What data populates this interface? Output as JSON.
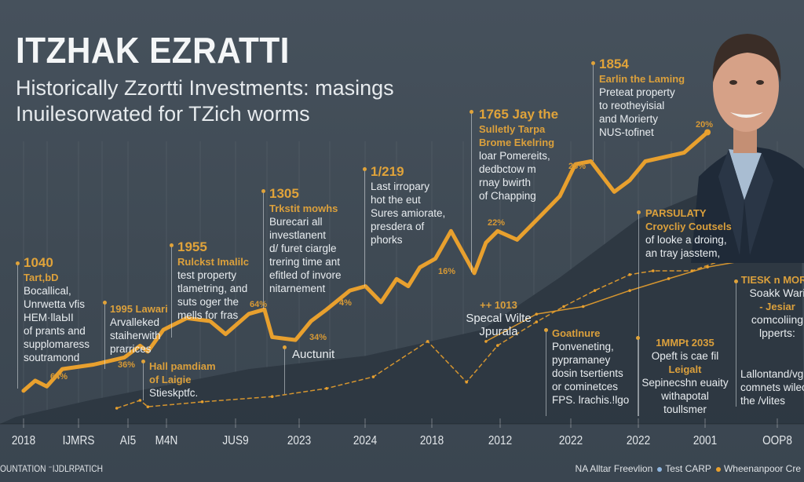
{
  "header": {
    "title": "ITZHAK EZRATTI",
    "subtitle_1": "Historically Zzortti Investments: masings",
    "subtitle_2": "Inuilesorwated for TZich worms"
  },
  "colors": {
    "accent": "#e8a02e",
    "background": "#3f4a55",
    "area": "#2c3640",
    "legend_blue": "#8fb6e0"
  },
  "chart_data": {
    "type": "line",
    "title": "ITZHAK EZRATTI",
    "x_tick_labels": [
      "2018",
      "IJMRS",
      "AI5",
      "M4N",
      "JUS9",
      "2023",
      "2024",
      "2018",
      "2012",
      "2022",
      "2022",
      "2001",
      "OOP8"
    ],
    "y_axis": "unlabeled",
    "xlim": [
      0,
      100
    ],
    "ylim": [
      0,
      100
    ],
    "grid": "vertical",
    "legend_placement": "bottom-right",
    "series": [
      {
        "style": "thick-orange",
        "points": [
          [
            1,
            6
          ],
          [
            2.5,
            9.5
          ],
          [
            4,
            7.5
          ],
          [
            6,
            13.5
          ],
          [
            10,
            15
          ],
          [
            14,
            17.5
          ],
          [
            16,
            21.5
          ],
          [
            17,
            19.5
          ],
          [
            19,
            27
          ],
          [
            22,
            31
          ],
          [
            25,
            30
          ],
          [
            27,
            25.5
          ],
          [
            30,
            32.5
          ],
          [
            32,
            34
          ],
          [
            33,
            24.5
          ],
          [
            36,
            23.5
          ],
          [
            38,
            30
          ],
          [
            40,
            34
          ],
          [
            43,
            40.5
          ],
          [
            45,
            42
          ],
          [
            47,
            36.5
          ],
          [
            49,
            44.5
          ],
          [
            50.5,
            42
          ],
          [
            52,
            48.5
          ],
          [
            54,
            51.5
          ],
          [
            56,
            61
          ],
          [
            59,
            46.5
          ],
          [
            60.5,
            57
          ],
          [
            62,
            61
          ],
          [
            64.5,
            58
          ],
          [
            68,
            67.5
          ],
          [
            70,
            73
          ],
          [
            72,
            84
          ],
          [
            74,
            85
          ],
          [
            77,
            74.5
          ],
          [
            79,
            78.5
          ],
          [
            81,
            85
          ],
          [
            86,
            88
          ],
          [
            89,
            95
          ]
        ]
      },
      {
        "style": "thin-orange-dashed",
        "points": [
          [
            13,
            0
          ],
          [
            16,
            2.7
          ],
          [
            17,
            0.5
          ],
          [
            24,
            2.2
          ],
          [
            33,
            4
          ],
          [
            40,
            6.8
          ],
          [
            46,
            10.8
          ],
          [
            53,
            23
          ],
          [
            58,
            9
          ],
          [
            62,
            21.6
          ],
          [
            67,
            29.7
          ],
          [
            70.5,
            35
          ],
          [
            74.5,
            40.5
          ],
          [
            79,
            46
          ],
          [
            82,
            47.3
          ],
          [
            87,
            47.3
          ],
          [
            91,
            51
          ],
          [
            101,
            55
          ]
        ]
      },
      {
        "style": "thin-orange",
        "points": [
          [
            60.5,
            23
          ],
          [
            67,
            32.4
          ],
          [
            73,
            35
          ],
          [
            79,
            40.5
          ],
          [
            84,
            44.6
          ],
          [
            89,
            48.6
          ],
          [
            95,
            51.4
          ],
          [
            101,
            54
          ]
        ]
      },
      {
        "style": "dark-area",
        "points": [
          [
            0,
            -3
          ],
          [
            10,
            3
          ],
          [
            30,
            13.5
          ],
          [
            45,
            18
          ],
          [
            60,
            27
          ],
          [
            70,
            45
          ],
          [
            80,
            65
          ],
          [
            90,
            76
          ],
          [
            101,
            81
          ]
        ]
      }
    ],
    "data_labels": [
      "64%",
      "36%",
      "64%",
      "34%",
      "4%",
      "16%",
      "22%",
      "25%",
      "20%"
    ]
  },
  "annotations": [
    {
      "lines": [
        {
          "t": "1040",
          "c": "year"
        },
        {
          "t": "Tart,bD",
          "c": "head"
        },
        {
          "t": "Bocallical,",
          "c": "body"
        },
        {
          "t": "Unrwetta vfis",
          "c": "body"
        },
        {
          "t": "HEM·llaЫI",
          "c": "body"
        },
        {
          "t": "of prants and",
          "c": "body"
        },
        {
          "t": "supplomaress",
          "c": "body"
        },
        {
          "t": "soutramond",
          "c": "body"
        }
      ]
    },
    {
      "lines": [
        {
          "t": "1995 Lawari",
          "c": "head"
        },
        {
          "t": "Arvalleked",
          "c": "body"
        },
        {
          "t": "staiherwith",
          "c": "body"
        },
        {
          "t": "prarrices",
          "c": "body"
        }
      ]
    },
    {
      "lines": [
        {
          "t": "1955",
          "c": "year"
        },
        {
          "t": "Rulckst  Imalilc",
          "c": "head"
        },
        {
          "t": "test property",
          "c": "body"
        },
        {
          "t": "tlametring, and",
          "c": "body"
        },
        {
          "t": "suts oger the",
          "c": "body"
        },
        {
          "t": "mells for fras",
          "c": "body"
        }
      ]
    },
    {
      "lines": [
        {
          "t": "Hall pamdiam",
          "c": "head"
        },
        {
          "t": "of Laigie",
          "c": "head"
        },
        {
          "t": "Stieskptfc.",
          "c": "body"
        }
      ]
    },
    {
      "lines": [
        {
          "t": "1305",
          "c": "year"
        },
        {
          "t": "Trkstit mowhs",
          "c": "head"
        },
        {
          "t": "Burecari all",
          "c": "body"
        },
        {
          "t": "investlanent",
          "c": "body"
        },
        {
          "t": "d/ furet ciargle",
          "c": "body"
        },
        {
          "t": "trering time ant",
          "c": "body"
        },
        {
          "t": "efitled of invore",
          "c": "body"
        },
        {
          "t": "nitarnement",
          "c": "body"
        }
      ]
    },
    {
      "lines": [
        {
          "t": "1/219",
          "c": "year"
        },
        {
          "t": "Last irropary",
          "c": "body"
        },
        {
          "t": "hot the eut",
          "c": "body"
        },
        {
          "t": "Sures amiorate,",
          "c": "body"
        },
        {
          "t": "presdera of",
          "c": "body"
        },
        {
          "t": "phorks",
          "c": "body"
        }
      ]
    },
    {
      "lines": [
        {
          "t": "Auctunit",
          "c": "body"
        }
      ]
    },
    {
      "lines": [
        {
          "t": "1765 Jay the",
          "c": "year"
        },
        {
          "t": "Sulletly Tarpa",
          "c": "head"
        },
        {
          "t": "Brome Ekelring",
          "c": "head"
        },
        {
          "t": "loar Pomereits,",
          "c": "body"
        },
        {
          "t": "dedbctow m",
          "c": "body"
        },
        {
          "t": "rnay bwirth",
          "c": "body"
        },
        {
          "t": "of Chapping",
          "c": "body"
        }
      ]
    },
    {
      "lines": [
        {
          "t": "1854",
          "c": "year"
        },
        {
          "t": "Earlin the Laming",
          "c": "head"
        },
        {
          "t": "Preteat property",
          "c": "body"
        },
        {
          "t": "to reotheyisial",
          "c": "body"
        },
        {
          "t": "and Morierty",
          "c": "body"
        },
        {
          "t": "NUS-tofinet",
          "c": "body"
        }
      ]
    },
    {
      "lines": [
        {
          "t": "PARSULATY",
          "c": "head"
        },
        {
          "t": "Croycliy Coutsels",
          "c": "head"
        },
        {
          "t": "of looke a droing,",
          "c": "body"
        },
        {
          "t": "an tray jasstem,",
          "c": "body"
        }
      ]
    },
    {
      "lines": [
        {
          "t": "++ 1013",
          "c": "head"
        },
        {
          "t": "Specal Wilte",
          "c": "body"
        },
        {
          "t": "Jpurala",
          "c": "body"
        }
      ]
    },
    {
      "lines": [
        {
          "t": "Goatlnure",
          "c": "head"
        },
        {
          "t": "Ponveneting,",
          "c": "body"
        },
        {
          "t": "pypramaney",
          "c": "body"
        },
        {
          "t": "dosin tsertients",
          "c": "body"
        },
        {
          "t": "or cominetces",
          "c": "body"
        },
        {
          "t": "FPS. lrachis.!lgo",
          "c": "body"
        }
      ]
    },
    {
      "lines": [
        {
          "t": "1MMPt 2035",
          "c": "head"
        },
        {
          "t": "Opeft is cae fil",
          "c": "body"
        },
        {
          "t": "Leigalt",
          "c": "head"
        },
        {
          "t": "Sepinecshn euaity",
          "c": "body"
        },
        {
          "t": "withapotal",
          "c": "body"
        },
        {
          "t": "toullsmer",
          "c": "body"
        }
      ]
    },
    {
      "lines": [
        {
          "t": "TIESK n MORE",
          "c": "head"
        },
        {
          "t": "Soakk Wari",
          "c": "body"
        },
        {
          "t": "- Jesiar",
          "c": "head"
        },
        {
          "t": "comcoliing",
          "c": "body"
        },
        {
          "t": "lpperts:",
          "c": "body"
        }
      ]
    },
    {
      "lines": [
        {
          "t": "Lallontand/vga",
          "c": "body"
        },
        {
          "t": "comnets wilec",
          "c": "body"
        },
        {
          "t": "the /vlites",
          "c": "body"
        }
      ]
    }
  ],
  "footer": {
    "left": "OUNTATION ⁻IJDLRPATICH",
    "legend": [
      {
        "label": "NA Alltar Freevlion"
      },
      {
        "label": "Test CARP",
        "color": "#8fb6e0"
      },
      {
        "label": "Wheenanpoor Cre",
        "color": "#e8a02e"
      }
    ]
  },
  "portrait": {
    "icon": "person-portrait-photo"
  }
}
